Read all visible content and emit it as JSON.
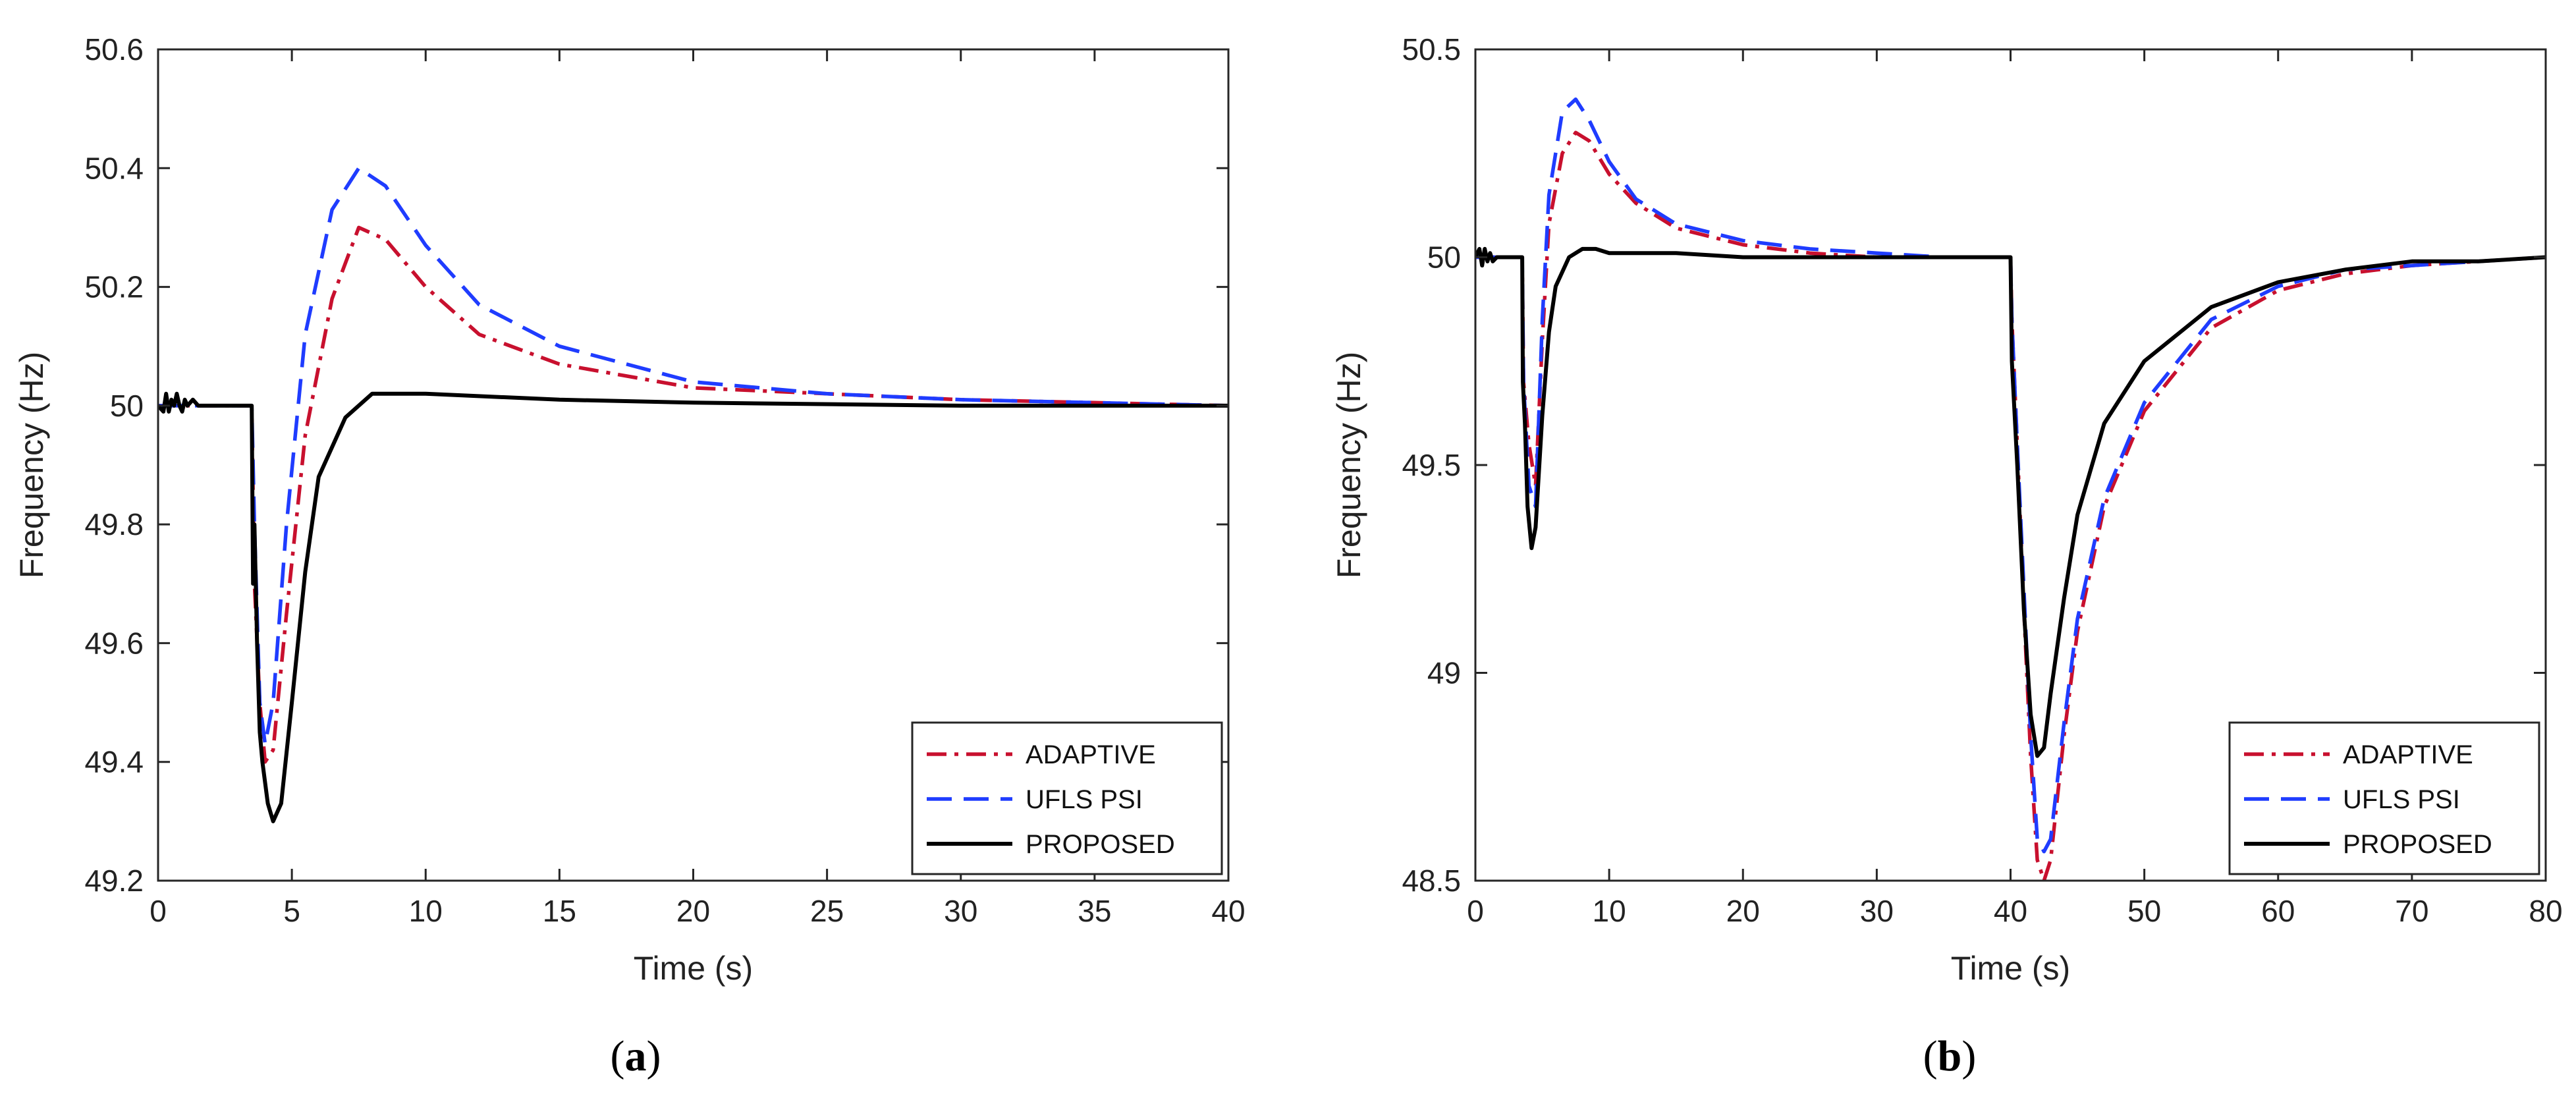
{
  "chart_data": [
    {
      "type": "line",
      "panel_label": "a",
      "xlabel": "Time (s)",
      "ylabel": "Frequency (Hz)",
      "xlim": [
        0,
        40
      ],
      "ylim": [
        49.2,
        50.6
      ],
      "xticks": [
        0,
        5,
        10,
        15,
        20,
        25,
        30,
        35,
        40
      ],
      "yticks": [
        49.2,
        49.4,
        49.6,
        49.8,
        50,
        50.2,
        50.4,
        50.6
      ],
      "ytick_labels": [
        "49.2",
        "49.4",
        "49.6",
        "49.8",
        "50",
        "50.2",
        "50.4",
        "50.6"
      ],
      "legend_position": "bottom-right",
      "series": [
        {
          "name": "ADAPTIVE",
          "color": "#c8102e",
          "style": "dashdot",
          "x": [
            0,
            3.5,
            3.6,
            3.8,
            4.0,
            4.3,
            4.8,
            5.5,
            6.5,
            7.5,
            8.5,
            10,
            12,
            15,
            20,
            25,
            30,
            35,
            40
          ],
          "y": [
            50,
            50,
            49.7,
            49.5,
            49.4,
            49.42,
            49.65,
            49.95,
            50.18,
            50.3,
            50.28,
            50.2,
            50.12,
            50.07,
            50.03,
            50.02,
            50.01,
            50.005,
            50.0
          ]
        },
        {
          "name": "UFLS PSI",
          "color": "#1f3cff",
          "style": "dashed",
          "x": [
            0,
            3.5,
            3.6,
            3.8,
            4.0,
            4.3,
            4.8,
            5.5,
            6.5,
            7.5,
            8.5,
            10,
            12,
            15,
            20,
            25,
            30,
            35,
            40
          ],
          "y": [
            50,
            50,
            49.8,
            49.5,
            49.43,
            49.5,
            49.8,
            50.12,
            50.33,
            50.4,
            50.37,
            50.27,
            50.17,
            50.1,
            50.04,
            50.02,
            50.01,
            50.005,
            50.0
          ]
        },
        {
          "name": "PROPOSED",
          "color": "#000000",
          "style": "solid",
          "x": [
            0,
            0.2,
            0.3,
            0.4,
            0.5,
            0.6,
            0.7,
            0.8,
            0.9,
            1.0,
            1.1,
            1.3,
            1.5,
            2.0,
            3.5,
            3.55,
            3.6,
            3.7,
            3.8,
            3.9,
            4.1,
            4.3,
            4.6,
            5.0,
            5.5,
            6.0,
            7.0,
            8.0,
            9.0,
            10,
            15,
            20,
            30,
            40
          ],
          "y": [
            50,
            49.99,
            50.02,
            49.99,
            50.01,
            50.0,
            50.02,
            50.0,
            49.99,
            50.01,
            50.0,
            50.01,
            50.0,
            50.0,
            50,
            49.7,
            49.8,
            49.6,
            49.45,
            49.4,
            49.33,
            49.3,
            49.33,
            49.5,
            49.72,
            49.88,
            49.98,
            50.02,
            50.02,
            50.02,
            50.01,
            50.005,
            50.0,
            50.0
          ]
        }
      ]
    },
    {
      "type": "line",
      "panel_label": "b",
      "xlabel": "Time (s)",
      "ylabel": "Frequency (Hz)",
      "xlim": [
        0,
        80
      ],
      "ylim": [
        48.5,
        50.5
      ],
      "xticks": [
        0,
        10,
        20,
        30,
        40,
        50,
        60,
        70,
        80
      ],
      "yticks": [
        48.5,
        49,
        49.5,
        50,
        50.5
      ],
      "ytick_labels": [
        "48.5",
        "49",
        "49.5",
        "50",
        "50.5"
      ],
      "legend_position": "bottom-right",
      "series": [
        {
          "name": "ADAPTIVE",
          "color": "#c8102e",
          "style": "dashdot",
          "x": [
            0,
            3.5,
            3.6,
            4.0,
            4.5,
            5.0,
            5.5,
            6.5,
            7.5,
            8.5,
            10,
            12,
            15,
            20,
            25,
            30,
            35,
            40,
            40.1,
            40.5,
            41.0,
            41.5,
            42.0,
            42.5,
            43.0,
            44.0,
            45.0,
            47.0,
            50.0,
            55.0,
            60.0,
            65.0,
            70.0,
            75.0,
            80.0
          ],
          "y": [
            50,
            50,
            49.7,
            49.55,
            49.45,
            49.8,
            50.08,
            50.25,
            50.3,
            50.28,
            50.2,
            50.13,
            50.07,
            50.03,
            50.01,
            50.0,
            50.0,
            50.0,
            49.85,
            49.55,
            49.15,
            48.8,
            48.55,
            48.5,
            48.55,
            48.85,
            49.1,
            49.4,
            49.63,
            49.83,
            49.92,
            49.96,
            49.98,
            49.99,
            50.0
          ]
        },
        {
          "name": "UFLS PSI",
          "color": "#1f3cff",
          "style": "dashed",
          "x": [
            0,
            3.5,
            3.6,
            4.0,
            4.5,
            5.0,
            5.5,
            6.5,
            7.5,
            8.5,
            10,
            12,
            15,
            20,
            25,
            30,
            35,
            40,
            40.1,
            40.5,
            41.0,
            41.5,
            42.0,
            42.5,
            43.0,
            44.0,
            45.0,
            47.0,
            50.0,
            55.0,
            60.0,
            65.0,
            70.0,
            75.0,
            80.0
          ],
          "y": [
            50,
            50,
            49.7,
            49.45,
            49.4,
            49.85,
            50.15,
            50.35,
            50.38,
            50.33,
            50.23,
            50.14,
            50.08,
            50.04,
            50.02,
            50.01,
            50.0,
            50.0,
            49.85,
            49.55,
            49.2,
            48.85,
            48.6,
            48.57,
            48.6,
            48.88,
            49.13,
            49.42,
            49.65,
            49.85,
            49.93,
            49.97,
            49.98,
            49.99,
            50.0
          ]
        },
        {
          "name": "PROPOSED",
          "color": "#000000",
          "style": "solid",
          "x": [
            0,
            0.3,
            0.5,
            0.7,
            0.9,
            1.1,
            1.3,
            1.6,
            2.0,
            3.5,
            3.55,
            3.7,
            3.9,
            4.2,
            4.5,
            5.0,
            5.5,
            6.0,
            7.0,
            8.0,
            9.0,
            10,
            15,
            20,
            30,
            40,
            40.1,
            40.5,
            41.0,
            41.5,
            42.0,
            42.5,
            43.0,
            44.0,
            45.0,
            47.0,
            50.0,
            55.0,
            60.0,
            65.0,
            70.0,
            75.0,
            80.0
          ],
          "y": [
            50,
            50.02,
            49.98,
            50.02,
            49.99,
            50.01,
            49.99,
            50.0,
            50.0,
            50,
            49.7,
            49.6,
            49.4,
            49.3,
            49.35,
            49.62,
            49.82,
            49.93,
            50.0,
            50.02,
            50.02,
            50.01,
            50.01,
            50.0,
            50.0,
            50.0,
            49.75,
            49.5,
            49.15,
            48.9,
            48.8,
            48.82,
            48.95,
            49.18,
            49.38,
            49.6,
            49.75,
            49.88,
            49.94,
            49.97,
            49.99,
            49.99,
            50.0
          ]
        }
      ]
    }
  ]
}
